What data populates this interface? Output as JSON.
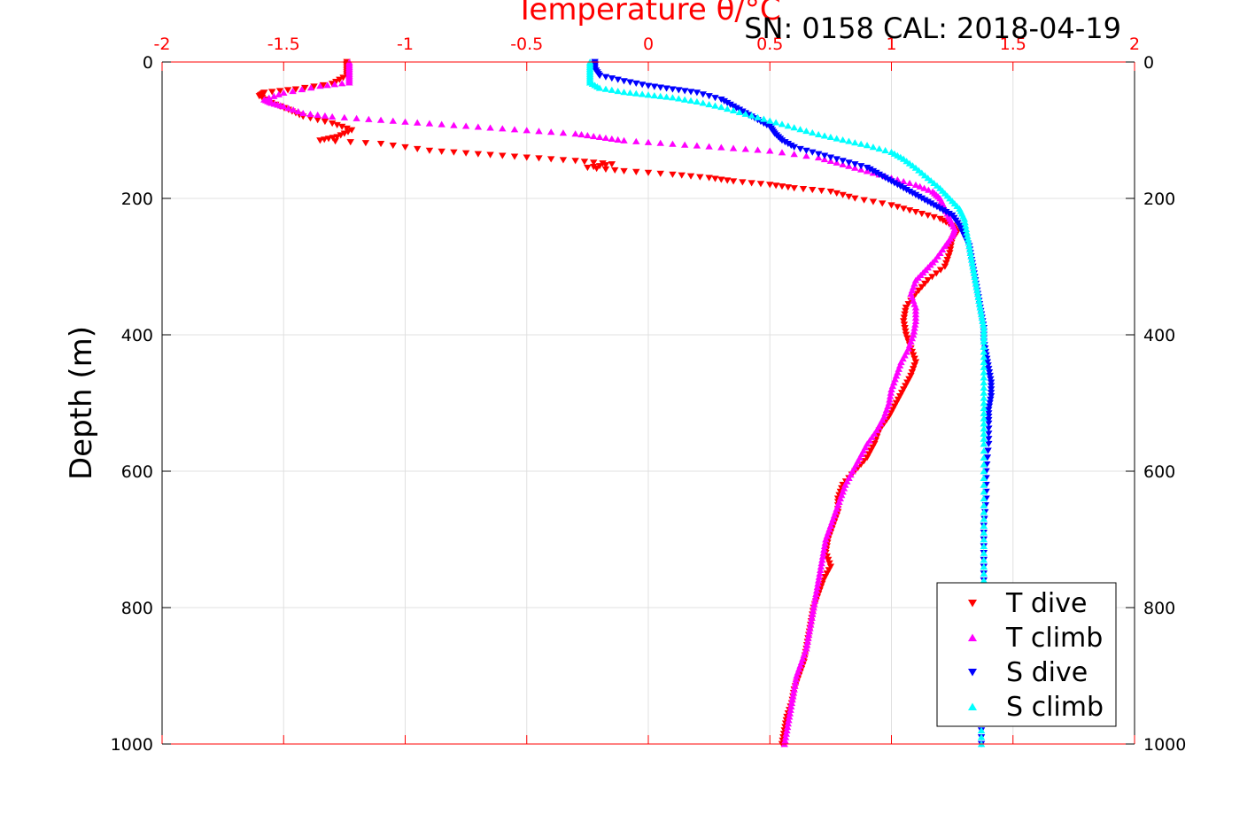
{
  "caption": "SN: 0158  CAL: 2018-04-19",
  "chart_data": {
    "type": "scatter",
    "xlabel": "Temperature θ/°C",
    "ylabel": "Depth (m)",
    "xlim": [
      -2,
      2
    ],
    "ylim": [
      1000,
      0
    ],
    "x_ticks": [
      "-2",
      "-1.5",
      "-1",
      "-0.5",
      "0",
      "0.5",
      "1",
      "1.5",
      "2"
    ],
    "y_ticks": [
      "0",
      "200",
      "400",
      "600",
      "800",
      "1000"
    ],
    "grid": true,
    "legend_position": "bottom-right",
    "series": [
      {
        "name": "T dive",
        "marker": "triangle-down",
        "color": "#ff0000",
        "points": [
          [
            -1.24,
            0
          ],
          [
            -1.24,
            10
          ],
          [
            -1.24,
            20
          ],
          [
            -1.3,
            32
          ],
          [
            -1.45,
            40
          ],
          [
            -1.58,
            45
          ],
          [
            -1.6,
            50
          ],
          [
            -1.55,
            60
          ],
          [
            -1.48,
            70
          ],
          [
            -1.42,
            80
          ],
          [
            -1.3,
            90
          ],
          [
            -1.22,
            100
          ],
          [
            -1.28,
            110
          ],
          [
            -1.35,
            115
          ],
          [
            -1.1,
            120
          ],
          [
            -0.9,
            130
          ],
          [
            -0.7,
            135
          ],
          [
            -0.5,
            140
          ],
          [
            -0.3,
            145
          ],
          [
            -0.15,
            150
          ],
          [
            -0.25,
            155
          ],
          [
            -0.1,
            160
          ],
          [
            0.1,
            165
          ],
          [
            0.25,
            170
          ],
          [
            0.35,
            175
          ],
          [
            0.5,
            180
          ],
          [
            0.6,
            185
          ],
          [
            0.75,
            190
          ],
          [
            0.85,
            200
          ],
          [
            1.0,
            210
          ],
          [
            1.1,
            220
          ],
          [
            1.2,
            230
          ],
          [
            1.25,
            240
          ],
          [
            1.27,
            250
          ],
          [
            1.25,
            260
          ],
          [
            1.24,
            280
          ],
          [
            1.22,
            300
          ],
          [
            1.15,
            320
          ],
          [
            1.1,
            340
          ],
          [
            1.06,
            360
          ],
          [
            1.05,
            380
          ],
          [
            1.06,
            400
          ],
          [
            1.08,
            420
          ],
          [
            1.1,
            440
          ],
          [
            1.08,
            460
          ],
          [
            1.05,
            480
          ],
          [
            1.02,
            500
          ],
          [
            0.99,
            520
          ],
          [
            0.95,
            540
          ],
          [
            0.93,
            560
          ],
          [
            0.9,
            580
          ],
          [
            0.85,
            600
          ],
          [
            0.8,
            620
          ],
          [
            0.78,
            640
          ],
          [
            0.78,
            660
          ],
          [
            0.76,
            680
          ],
          [
            0.74,
            700
          ],
          [
            0.73,
            720
          ],
          [
            0.75,
            740
          ],
          [
            0.72,
            760
          ],
          [
            0.7,
            780
          ],
          [
            0.68,
            800
          ],
          [
            0.67,
            820
          ],
          [
            0.66,
            840
          ],
          [
            0.65,
            860
          ],
          [
            0.64,
            880
          ],
          [
            0.62,
            900
          ],
          [
            0.6,
            920
          ],
          [
            0.59,
            940
          ],
          [
            0.57,
            960
          ],
          [
            0.56,
            980
          ],
          [
            0.55,
            1000
          ]
        ]
      },
      {
        "name": "T climb",
        "marker": "triangle-up",
        "color": "#ff00ff",
        "points": [
          [
            -1.23,
            0
          ],
          [
            -1.23,
            10
          ],
          [
            -1.23,
            20
          ],
          [
            -1.23,
            30
          ],
          [
            -1.35,
            35
          ],
          [
            -1.5,
            45
          ],
          [
            -1.58,
            55
          ],
          [
            -1.55,
            60
          ],
          [
            -1.5,
            65
          ],
          [
            -1.42,
            75
          ],
          [
            -1.3,
            80
          ],
          [
            -1.1,
            85
          ],
          [
            -0.9,
            90
          ],
          [
            -0.7,
            95
          ],
          [
            -0.5,
            100
          ],
          [
            -0.3,
            105
          ],
          [
            -0.2,
            110
          ],
          [
            -0.1,
            115
          ],
          [
            0.1,
            120
          ],
          [
            0.3,
            125
          ],
          [
            0.5,
            130
          ],
          [
            0.7,
            140
          ],
          [
            0.8,
            150
          ],
          [
            0.9,
            160
          ],
          [
            1.0,
            170
          ],
          [
            1.1,
            180
          ],
          [
            1.17,
            190
          ],
          [
            1.2,
            200
          ],
          [
            1.22,
            215
          ],
          [
            1.24,
            230
          ],
          [
            1.26,
            245
          ],
          [
            1.25,
            255
          ],
          [
            1.22,
            270
          ],
          [
            1.18,
            290
          ],
          [
            1.14,
            305
          ],
          [
            1.1,
            320
          ],
          [
            1.08,
            340
          ],
          [
            1.1,
            360
          ],
          [
            1.1,
            380
          ],
          [
            1.09,
            400
          ],
          [
            1.07,
            420
          ],
          [
            1.04,
            440
          ],
          [
            1.02,
            460
          ],
          [
            1.0,
            480
          ],
          [
            0.99,
            500
          ],
          [
            0.97,
            520
          ],
          [
            0.94,
            540
          ],
          [
            0.9,
            560
          ],
          [
            0.87,
            580
          ],
          [
            0.84,
            600
          ],
          [
            0.81,
            620
          ],
          [
            0.79,
            640
          ],
          [
            0.77,
            660
          ],
          [
            0.75,
            680
          ],
          [
            0.73,
            700
          ],
          [
            0.72,
            720
          ],
          [
            0.71,
            740
          ],
          [
            0.7,
            760
          ],
          [
            0.69,
            780
          ],
          [
            0.68,
            800
          ],
          [
            0.67,
            820
          ],
          [
            0.66,
            840
          ],
          [
            0.65,
            860
          ],
          [
            0.63,
            880
          ],
          [
            0.61,
            900
          ],
          [
            0.6,
            920
          ],
          [
            0.59,
            940
          ],
          [
            0.58,
            960
          ],
          [
            0.57,
            980
          ],
          [
            0.56,
            1000
          ]
        ]
      },
      {
        "name": "S dive",
        "marker": "triangle-down",
        "color": "#0000ff",
        "points": [
          [
            -0.22,
            0
          ],
          [
            -0.22,
            10
          ],
          [
            -0.2,
            20
          ],
          [
            -0.1,
            28
          ],
          [
            0.0,
            35
          ],
          [
            0.1,
            40
          ],
          [
            0.2,
            45
          ],
          [
            0.3,
            55
          ],
          [
            0.35,
            65
          ],
          [
            0.4,
            75
          ],
          [
            0.45,
            85
          ],
          [
            0.5,
            95
          ],
          [
            0.52,
            105
          ],
          [
            0.55,
            115
          ],
          [
            0.6,
            125
          ],
          [
            0.7,
            135
          ],
          [
            0.8,
            145
          ],
          [
            0.9,
            155
          ],
          [
            0.95,
            165
          ],
          [
            1.0,
            175
          ],
          [
            1.05,
            185
          ],
          [
            1.1,
            195
          ],
          [
            1.15,
            205
          ],
          [
            1.2,
            215
          ],
          [
            1.25,
            225
          ],
          [
            1.28,
            240
          ],
          [
            1.3,
            255
          ],
          [
            1.32,
            270
          ],
          [
            1.33,
            290
          ],
          [
            1.34,
            310
          ],
          [
            1.35,
            330
          ],
          [
            1.36,
            350
          ],
          [
            1.37,
            370
          ],
          [
            1.38,
            390
          ],
          [
            1.38,
            410
          ],
          [
            1.39,
            430
          ],
          [
            1.4,
            450
          ],
          [
            1.41,
            470
          ],
          [
            1.41,
            490
          ],
          [
            1.4,
            510
          ],
          [
            1.4,
            530
          ],
          [
            1.4,
            560
          ],
          [
            1.39,
            600
          ],
          [
            1.39,
            640
          ],
          [
            1.38,
            680
          ],
          [
            1.38,
            720
          ],
          [
            1.38,
            760
          ],
          [
            1.38,
            800
          ],
          [
            1.38,
            840
          ],
          [
            1.37,
            880
          ],
          [
            1.37,
            920
          ],
          [
            1.37,
            960
          ],
          [
            1.37,
            1000
          ]
        ]
      },
      {
        "name": "S climb",
        "marker": "triangle-up",
        "color": "#00ffff",
        "points": [
          [
            -0.24,
            0
          ],
          [
            -0.24,
            10
          ],
          [
            -0.24,
            20
          ],
          [
            -0.24,
            30
          ],
          [
            -0.2,
            38
          ],
          [
            -0.1,
            44
          ],
          [
            0.0,
            48
          ],
          [
            0.1,
            52
          ],
          [
            0.2,
            58
          ],
          [
            0.3,
            66
          ],
          [
            0.4,
            76
          ],
          [
            0.5,
            86
          ],
          [
            0.6,
            96
          ],
          [
            0.7,
            106
          ],
          [
            0.8,
            114
          ],
          [
            0.9,
            122
          ],
          [
            1.0,
            132
          ],
          [
            1.05,
            142
          ],
          [
            1.1,
            155
          ],
          [
            1.15,
            170
          ],
          [
            1.2,
            185
          ],
          [
            1.24,
            200
          ],
          [
            1.28,
            215
          ],
          [
            1.3,
            230
          ],
          [
            1.31,
            250
          ],
          [
            1.32,
            270
          ],
          [
            1.33,
            290
          ],
          [
            1.34,
            310
          ],
          [
            1.35,
            330
          ],
          [
            1.36,
            350
          ],
          [
            1.37,
            370
          ],
          [
            1.38,
            390
          ],
          [
            1.38,
            410
          ],
          [
            1.38,
            440
          ],
          [
            1.38,
            470
          ],
          [
            1.38,
            500
          ],
          [
            1.38,
            530
          ],
          [
            1.38,
            560
          ],
          [
            1.38,
            600
          ],
          [
            1.38,
            640
          ],
          [
            1.38,
            680
          ],
          [
            1.38,
            720
          ],
          [
            1.38,
            760
          ],
          [
            1.38,
            800
          ],
          [
            1.38,
            840
          ],
          [
            1.37,
            880
          ],
          [
            1.37,
            920
          ],
          [
            1.37,
            960
          ],
          [
            1.37,
            1000
          ]
        ]
      }
    ]
  }
}
